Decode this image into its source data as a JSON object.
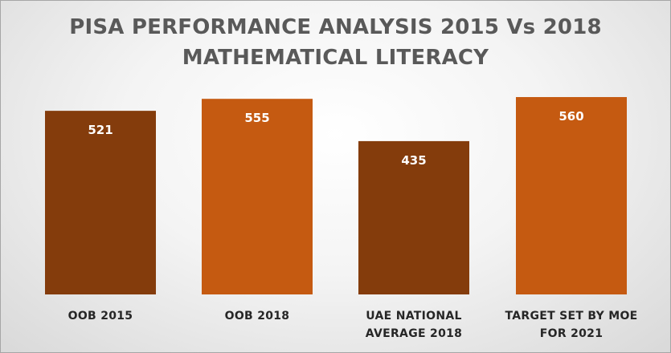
{
  "chart_data": {
    "type": "bar",
    "title": [
      "PISA PERFORMANCE ANALYSIS 2015 Vs 2018",
      "MATHEMATICAL  LITERACY"
    ],
    "categories": [
      [
        "OOB 2015"
      ],
      [
        "OOB 2018"
      ],
      [
        "UAE NATIONAL",
        "AVERAGE 2018"
      ],
      [
        "TARGET SET BY MOE",
        "FOR 2021"
      ]
    ],
    "values": [
      521,
      555,
      435,
      560
    ],
    "value_labels": [
      "521",
      "555",
      "435",
      "560"
    ],
    "colors": [
      "#843c0c",
      "#c55a11",
      "#843c0c",
      "#c55a11"
    ],
    "xlabel": "",
    "ylabel": "",
    "grid": false,
    "legend": "none"
  }
}
